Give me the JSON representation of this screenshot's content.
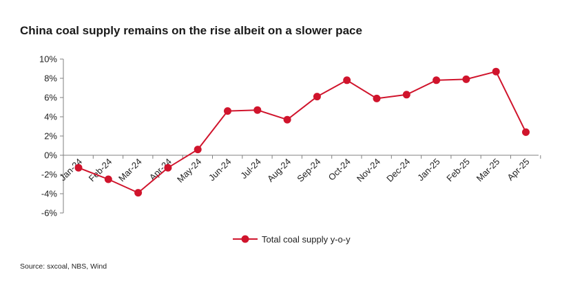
{
  "chart_data": {
    "type": "line",
    "title": "China coal supply remains on the rise albeit on a slower pace",
    "source": "Source: sxcoal, NBS, Wind",
    "categories": [
      "Jan-24",
      "Feb-24",
      "Mar-24",
      "Apr-24",
      "May-24",
      "Jun-24",
      "Jul-24",
      "Aug-24",
      "Sep-24",
      "Oct-24",
      "Nov-24",
      "Dec-24",
      "Jan-25",
      "Feb-25",
      "Mar-25",
      "Apr-25"
    ],
    "series": [
      {
        "name": "Total coal supply y-o-y",
        "color": "#d0142c",
        "values": [
          -1.3,
          -2.5,
          -3.9,
          -1.3,
          0.6,
          4.6,
          4.7,
          3.7,
          6.1,
          7.8,
          5.9,
          6.3,
          7.8,
          7.9,
          8.7,
          2.4
        ]
      }
    ],
    "ylim": [
      -6,
      10
    ],
    "yticks": [
      -6,
      -4,
      -2,
      0,
      2,
      4,
      6,
      8,
      10
    ],
    "ytick_labels": [
      "-6%",
      "-4%",
      "-2%",
      "0%",
      "2%",
      "4%",
      "6%",
      "8%",
      "10%"
    ],
    "xlabel": "",
    "ylabel": "",
    "grid": false,
    "legend_position": "bottom-center"
  }
}
